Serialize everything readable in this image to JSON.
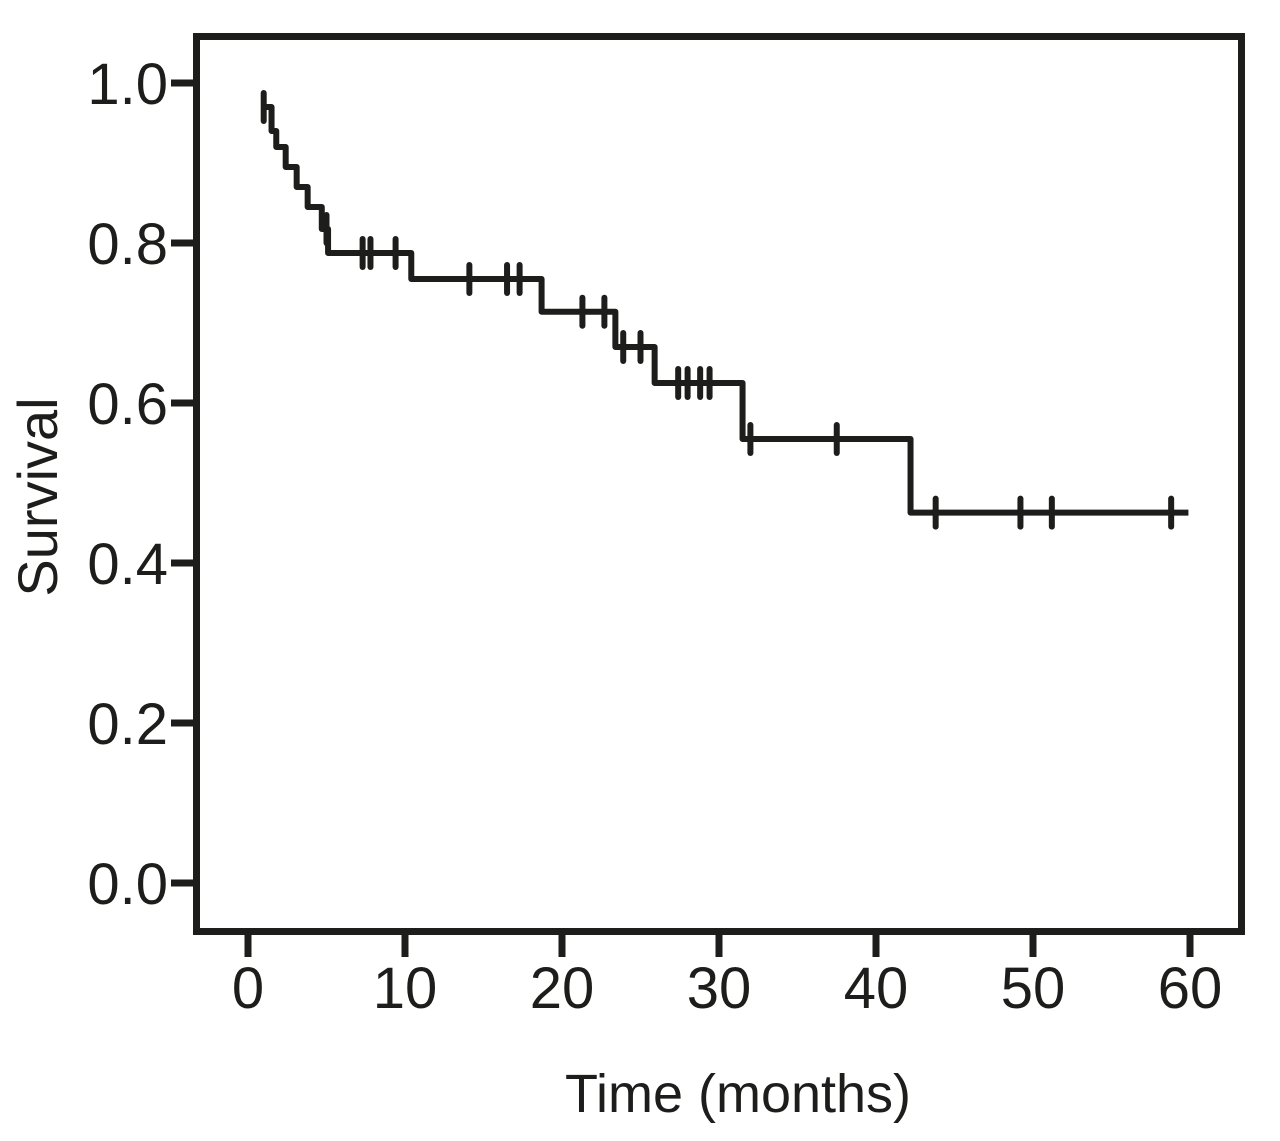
{
  "figure": {
    "background_color": "#ffffff",
    "ink_color": "#1d1d1b"
  },
  "chart_data": {
    "type": "line",
    "subtype": "kaplan-meier-survival-step",
    "title": "",
    "xlabel": "Time (months)",
    "ylabel": "Survival",
    "x_ticks": [
      "0",
      "10",
      "20",
      "30",
      "40",
      "50",
      "60"
    ],
    "x_tick_values": [
      0,
      10,
      20,
      30,
      40,
      50,
      60
    ],
    "y_ticks": [
      "0.0",
      "0.2",
      "0.4",
      "0.6",
      "0.8",
      "1.0"
    ],
    "y_tick_values": [
      0.0,
      0.2,
      0.4,
      0.6,
      0.8,
      1.0
    ],
    "xlim": [
      0,
      60
    ],
    "ylim": [
      0,
      1
    ],
    "grid": false,
    "legend": "none",
    "series": [
      {
        "name": "survival-curve",
        "style": "step",
        "points": [
          [
            0.9,
            0.97
          ],
          [
            1.5,
            0.94
          ],
          [
            1.8,
            0.92
          ],
          [
            2.4,
            0.895
          ],
          [
            3.1,
            0.87
          ],
          [
            3.8,
            0.845
          ],
          [
            4.7,
            0.8175
          ],
          [
            5.1,
            0.7875
          ],
          [
            10.4,
            0.755
          ],
          [
            18.7,
            0.714
          ],
          [
            23.4,
            0.67
          ],
          [
            25.9,
            0.625
          ],
          [
            31.5,
            0.555
          ],
          [
            42.2,
            0.463
          ]
        ],
        "end_time": 59.9,
        "censor_marks": [
          [
            1.0,
            0.97
          ],
          [
            5.0,
            0.8175
          ],
          [
            7.3,
            0.7875
          ],
          [
            7.8,
            0.7875
          ],
          [
            9.4,
            0.7875
          ],
          [
            14.1,
            0.755
          ],
          [
            16.5,
            0.755
          ],
          [
            17.3,
            0.755
          ],
          [
            21.3,
            0.714
          ],
          [
            22.7,
            0.714
          ],
          [
            23.9,
            0.67
          ],
          [
            25.0,
            0.67
          ],
          [
            27.4,
            0.625
          ],
          [
            28.0,
            0.625
          ],
          [
            28.8,
            0.625
          ],
          [
            29.4,
            0.625
          ],
          [
            32.0,
            0.555
          ],
          [
            37.5,
            0.555
          ],
          [
            43.8,
            0.463
          ],
          [
            49.2,
            0.463
          ],
          [
            51.2,
            0.463
          ],
          [
            58.8,
            0.463
          ]
        ]
      }
    ]
  }
}
